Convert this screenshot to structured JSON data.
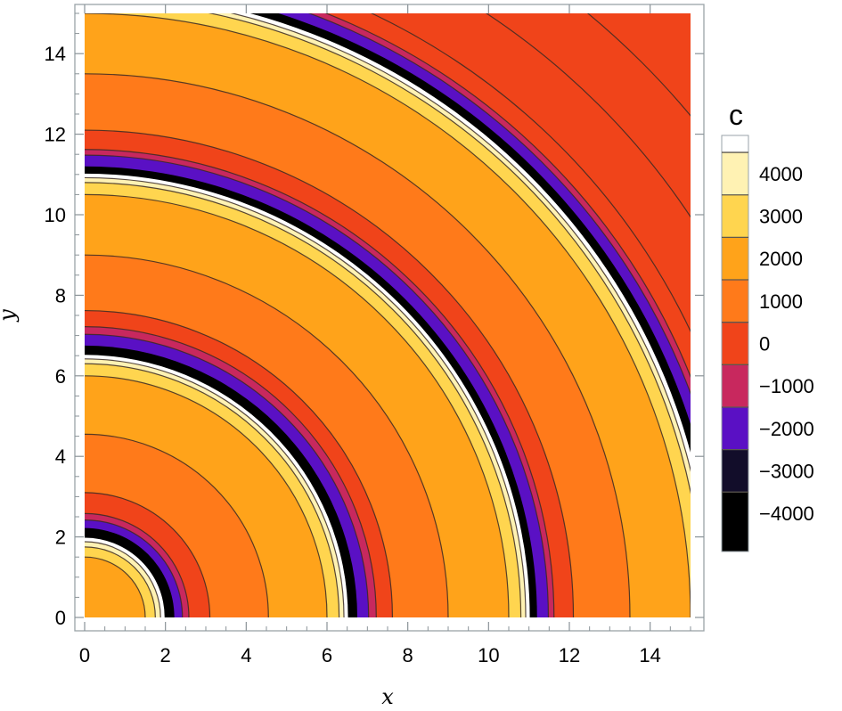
{
  "chart_data": {
    "type": "contour",
    "xlabel": "x",
    "ylabel": "y",
    "xlim": [
      0,
      15
    ],
    "ylim": [
      0,
      15
    ],
    "x_ticks": [
      0,
      2,
      4,
      6,
      8,
      10,
      12,
      14
    ],
    "y_ticks": [
      0,
      2,
      4,
      6,
      8,
      10,
      12,
      14
    ],
    "x_tick_labels": [
      "0",
      "2",
      "4",
      "6",
      "8",
      "10",
      "12",
      "14"
    ],
    "y_tick_labels": [
      "0",
      "2",
      "4",
      "6",
      "8",
      "10",
      "12",
      "14"
    ],
    "grid": false,
    "legend": {
      "title": "c",
      "placement": "right",
      "tick_values": [
        4000,
        3000,
        2000,
        1000,
        0,
        -1000,
        -2000,
        -3000,
        -4000
      ],
      "tick_labels": [
        "4000",
        "3000",
        "2000",
        "1000",
        "0",
        "−1000",
        "−2000",
        "−3000",
        "−4000"
      ],
      "band_colors": [
        "#ffffff",
        "#fff2b3",
        "#ffd54f",
        "#ffa31a",
        "#ff7a1a",
        "#f0441a",
        "#c8285e",
        "#5a10c4",
        "#120d2a",
        "#000000"
      ]
    },
    "ring_boundaries_r": [
      [
        0,
        "#ff7a1a"
      ],
      [
        1.5,
        "#ffa31a"
      ],
      [
        1.75,
        "#ffd54f"
      ],
      [
        1.88,
        "#fff2b3"
      ],
      [
        1.98,
        "#ffffff"
      ],
      [
        2.22,
        "#000000"
      ],
      [
        2.42,
        "#5a10c4"
      ],
      [
        2.58,
        "#c8285e"
      ],
      [
        3.1,
        "#f0441a"
      ],
      [
        4.55,
        "#ff7a1a"
      ],
      [
        6.0,
        "#ffa31a"
      ],
      [
        6.3,
        "#ffd54f"
      ],
      [
        6.42,
        "#fff2b3"
      ],
      [
        6.52,
        "#ffffff"
      ],
      [
        6.75,
        "#000000"
      ],
      [
        7.03,
        "#5a10c4"
      ],
      [
        7.22,
        "#c8285e"
      ],
      [
        7.62,
        "#f0441a"
      ],
      [
        9.0,
        "#ff7a1a"
      ],
      [
        10.5,
        "#ffa31a"
      ],
      [
        10.8,
        "#ffd54f"
      ],
      [
        10.92,
        "#fff2b3"
      ],
      [
        11.02,
        "#ffffff"
      ],
      [
        11.2,
        "#000000"
      ],
      [
        11.48,
        "#5a10c4"
      ],
      [
        11.62,
        "#c8285e"
      ],
      [
        12.1,
        "#f0441a"
      ],
      [
        13.5,
        "#ff7a1a"
      ],
      [
        15.0,
        "#ffa31a"
      ],
      [
        15.32,
        "#ffd54f"
      ],
      [
        15.44,
        "#fff2b3"
      ],
      [
        15.55,
        "#ffffff"
      ],
      [
        15.75,
        "#000000"
      ],
      [
        16.0,
        "#5a10c4"
      ],
      [
        16.15,
        "#c8285e"
      ],
      [
        16.6,
        "#f0441a"
      ],
      [
        22.0,
        "#f0441a"
      ]
    ],
    "contour_lines_r": [
      1.5,
      1.75,
      1.88,
      2.42,
      2.58,
      3.1,
      4.55,
      6.0,
      6.3,
      6.42,
      7.03,
      7.22,
      7.62,
      9.0,
      10.5,
      10.8,
      10.92,
      11.48,
      11.62,
      12.1,
      13.5,
      15.0,
      15.32,
      15.44,
      16.0,
      16.15,
      16.6,
      18.0,
      19.5
    ]
  }
}
